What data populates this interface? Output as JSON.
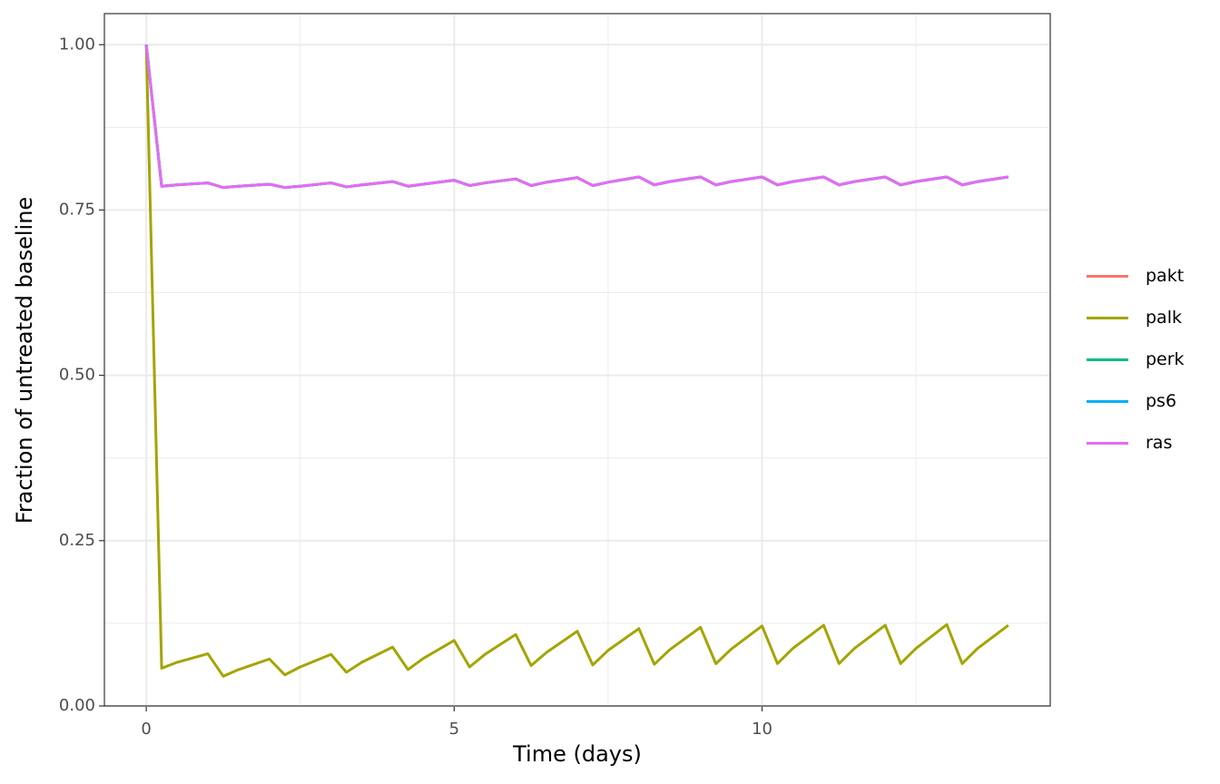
{
  "chart_data": {
    "type": "line",
    "x_label": "Time (days)",
    "y_label": "Fraction of untreated baseline",
    "x": [
      0,
      0.25,
      0.5,
      1,
      1.25,
      1.5,
      2,
      2.25,
      2.5,
      3,
      3.25,
      3.5,
      4,
      4.25,
      4.5,
      5,
      5.25,
      5.5,
      6,
      6.25,
      6.5,
      7,
      7.25,
      7.5,
      8,
      8.25,
      8.5,
      9,
      9.25,
      9.5,
      10,
      10.25,
      10.5,
      11,
      11.25,
      11.5,
      12,
      12.25,
      12.5,
      13,
      13.25,
      13.5,
      14
    ],
    "series": [
      {
        "name": "pakt",
        "color": "#F8766D",
        "values": [
          1,
          0.786,
          0.788,
          0.791,
          0.784,
          0.786,
          0.789,
          0.784,
          0.786,
          0.791,
          0.785,
          0.788,
          0.793,
          0.786,
          0.789,
          0.795,
          0.787,
          0.791,
          0.797,
          0.787,
          0.792,
          0.799,
          0.787,
          0.792,
          0.8,
          0.788,
          0.793,
          0.8,
          0.788,
          0.793,
          0.8,
          0.788,
          0.793,
          0.8,
          0.788,
          0.793,
          0.8,
          0.788,
          0.793,
          0.8,
          0.788,
          0.793,
          0.8
        ]
      },
      {
        "name": "palk",
        "color": "#A3A500",
        "values": [
          1,
          0.057,
          0.066,
          0.079,
          0.045,
          0.055,
          0.071,
          0.047,
          0.059,
          0.078,
          0.051,
          0.066,
          0.089,
          0.055,
          0.072,
          0.099,
          0.059,
          0.078,
          0.108,
          0.061,
          0.081,
          0.113,
          0.062,
          0.084,
          0.117,
          0.063,
          0.085,
          0.119,
          0.064,
          0.086,
          0.121,
          0.064,
          0.087,
          0.122,
          0.064,
          0.087,
          0.122,
          0.064,
          0.087,
          0.123,
          0.064,
          0.087,
          0.122
        ]
      },
      {
        "name": "perk",
        "color": "#00BF7D",
        "values": [
          1,
          0.786,
          0.788,
          0.791,
          0.784,
          0.786,
          0.789,
          0.784,
          0.786,
          0.791,
          0.785,
          0.788,
          0.793,
          0.786,
          0.789,
          0.795,
          0.787,
          0.791,
          0.797,
          0.787,
          0.792,
          0.799,
          0.787,
          0.792,
          0.8,
          0.788,
          0.793,
          0.8,
          0.788,
          0.793,
          0.8,
          0.788,
          0.793,
          0.8,
          0.788,
          0.793,
          0.8,
          0.788,
          0.793,
          0.8,
          0.788,
          0.793,
          0.8
        ]
      },
      {
        "name": "ps6",
        "color": "#00B0F6",
        "values": [
          1,
          0.786,
          0.788,
          0.791,
          0.784,
          0.786,
          0.789,
          0.784,
          0.786,
          0.791,
          0.785,
          0.788,
          0.793,
          0.786,
          0.789,
          0.795,
          0.787,
          0.791,
          0.797,
          0.787,
          0.792,
          0.799,
          0.787,
          0.792,
          0.8,
          0.788,
          0.793,
          0.8,
          0.788,
          0.793,
          0.8,
          0.788,
          0.793,
          0.8,
          0.788,
          0.793,
          0.8,
          0.788,
          0.793,
          0.8,
          0.788,
          0.793,
          0.8
        ]
      },
      {
        "name": "ras",
        "color": "#E76BF3",
        "values": [
          1,
          0.786,
          0.788,
          0.791,
          0.784,
          0.786,
          0.789,
          0.784,
          0.786,
          0.791,
          0.785,
          0.788,
          0.793,
          0.786,
          0.789,
          0.795,
          0.787,
          0.791,
          0.797,
          0.787,
          0.792,
          0.799,
          0.787,
          0.792,
          0.8,
          0.788,
          0.793,
          0.8,
          0.788,
          0.793,
          0.8,
          0.788,
          0.793,
          0.8,
          0.788,
          0.793,
          0.8,
          0.788,
          0.793,
          0.8,
          0.788,
          0.793,
          0.8
        ]
      }
    ],
    "xlim": [
      -0.68,
      14.68
    ],
    "xticks": [
      0,
      5,
      10
    ],
    "ylim": [
      0,
      1.047
    ],
    "yticks": [
      {
        "value": 0,
        "label": "0.00"
      },
      {
        "value": 0.25,
        "label": "0.25"
      },
      {
        "value": 0.5,
        "label": "0.50"
      },
      {
        "value": 0.75,
        "label": "0.75"
      },
      {
        "value": 1,
        "label": "1.00"
      }
    ],
    "grid": true,
    "legend": "right"
  }
}
